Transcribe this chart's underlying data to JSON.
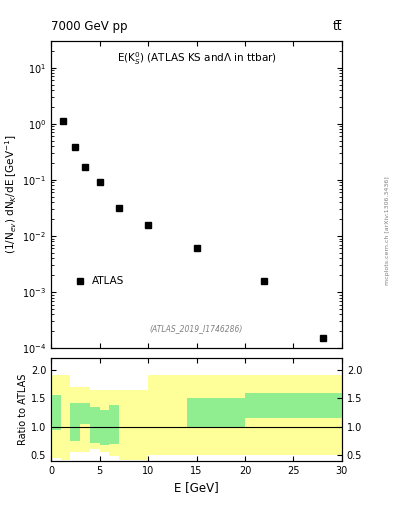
{
  "title_left": "7000 GeV pp",
  "title_right": "tt̅",
  "panel_title": "E(K$_S^0$) (ATLAS KS andΛ in ttbar)",
  "watermark": "(ATLAS_2019_I1746286)",
  "ylabel_main": "(1/N$_{ev}$) dN$_K$/dE [GeV$^{-1}$]",
  "ylabel_ratio": "Ratio to ATLAS",
  "xlabel": "E [GeV]",
  "arxiv_label": "mcplots.cern.ch [arXiv:1306.3436]",
  "data_x": [
    1.25,
    2.5,
    3.5,
    5.0,
    7.0,
    10.0,
    15.0,
    22.0,
    28.0
  ],
  "data_y": [
    1.1,
    0.38,
    0.17,
    0.09,
    0.032,
    0.016,
    0.006,
    0.0016,
    0.00015
  ],
  "ylim_main": [
    0.0001,
    30
  ],
  "xlim": [
    0,
    30
  ],
  "ratio_bin_edges": [
    0,
    1,
    2,
    3,
    4,
    5,
    6,
    7,
    8,
    9,
    10,
    12,
    14,
    16,
    18,
    20,
    25,
    30
  ],
  "ratio_green_lo": [
    0.95,
    1.1,
    0.75,
    1.05,
    0.72,
    0.68,
    0.7,
    0.7,
    0.72,
    0.72,
    1.0,
    1.0,
    1.0,
    1.0,
    1.0,
    1.15,
    1.15
  ],
  "ratio_green_hi": [
    1.55,
    1.5,
    1.42,
    1.42,
    1.35,
    1.3,
    1.38,
    1.38,
    1.38,
    1.38,
    1.5,
    1.5,
    1.5,
    1.5,
    1.5,
    1.6,
    1.6
  ],
  "ratio_yellow_lo": [
    0.45,
    0.42,
    0.55,
    0.55,
    0.6,
    0.55,
    0.48,
    0.42,
    0.42,
    0.42,
    0.5,
    0.5,
    0.5,
    0.5,
    0.5,
    0.5,
    0.5
  ],
  "ratio_yellow_hi": [
    1.9,
    1.9,
    1.7,
    1.7,
    1.65,
    1.65,
    1.65,
    1.65,
    1.65,
    1.65,
    1.9,
    1.9,
    1.9,
    1.9,
    1.9,
    1.9,
    1.9
  ],
  "ratio_white_bins": [
    1,
    7,
    8,
    9,
    10,
    11
  ],
  "ratio_ylim": [
    0.4,
    2.2
  ],
  "ratio_yticks": [
    0.5,
    1.0,
    1.5,
    2.0
  ],
  "color_green": "#90EE90",
  "color_yellow": "#FFFF99",
  "marker_color": "black",
  "marker_size": 4
}
